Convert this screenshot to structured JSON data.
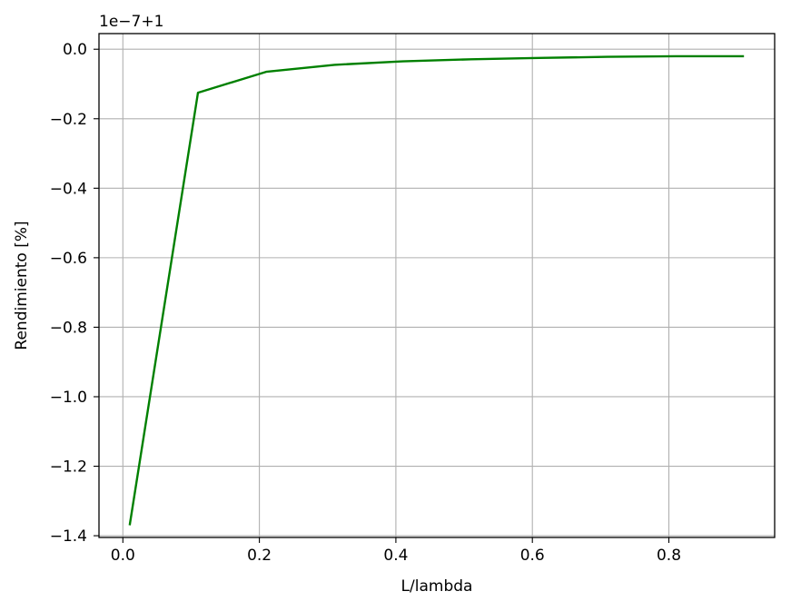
{
  "chart_data": {
    "type": "line",
    "title": "",
    "xlabel": "L/lambda",
    "ylabel": "Rendimiento [%]",
    "offset_label": "1e−7+1",
    "xlim": [
      -0.035,
      0.955
    ],
    "ylim": [
      -1.405,
      0.045
    ],
    "x_ticks": [
      0.0,
      0.2,
      0.4,
      0.6,
      0.8
    ],
    "x_tick_labels": [
      "0.0",
      "0.2",
      "0.4",
      "0.6",
      "0.8"
    ],
    "y_ticks": [
      0.0,
      -0.2,
      -0.4,
      -0.6,
      -0.8,
      -1.0,
      -1.2,
      -1.4
    ],
    "y_tick_labels": [
      "0.0",
      "−0.2",
      "−0.4",
      "−0.6",
      "−0.8",
      "−1.0",
      "−1.2",
      "−1.4"
    ],
    "grid": true,
    "series": [
      {
        "color": "#008000",
        "x": [
          0.01,
          0.11,
          0.21,
          0.31,
          0.41,
          0.51,
          0.61,
          0.71,
          0.81,
          0.91
        ],
        "y": [
          -1.37,
          -0.125,
          -0.065,
          -0.045,
          -0.035,
          -0.029,
          -0.025,
          -0.022,
          -0.02,
          -0.02
        ]
      }
    ]
  }
}
